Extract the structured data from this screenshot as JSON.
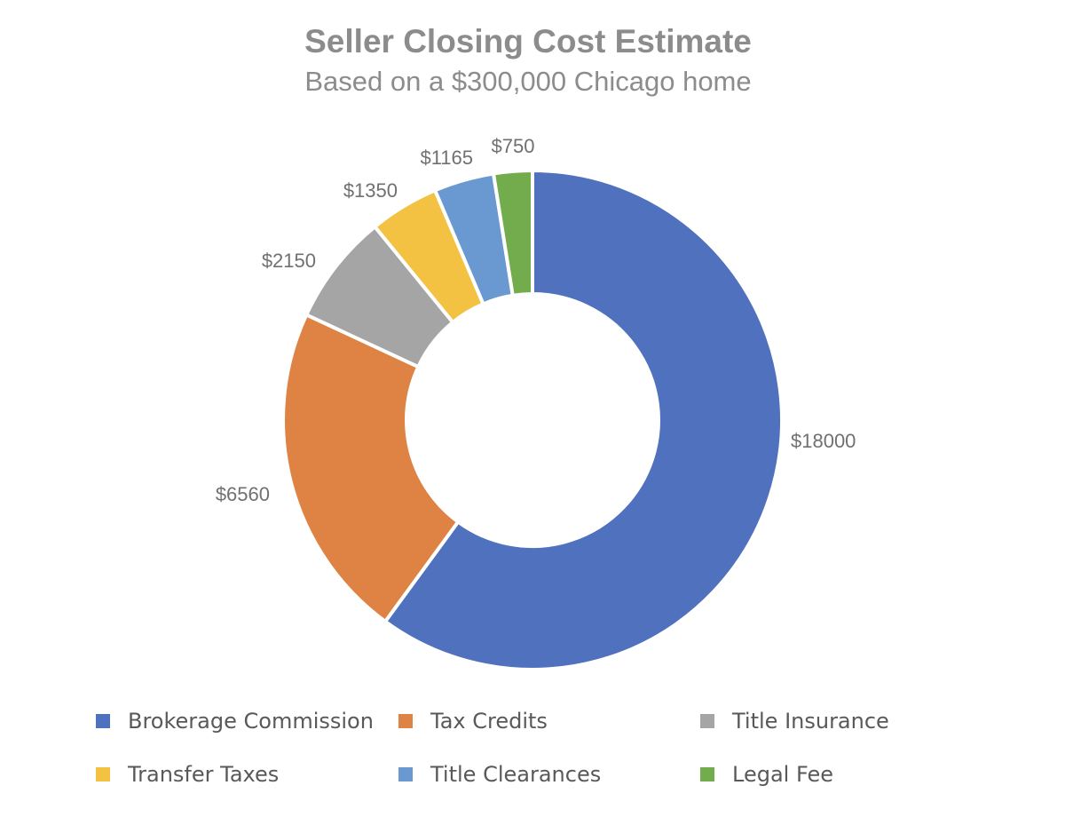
{
  "chart_data": {
    "type": "donut",
    "title": "Seller Closing Cost Estimate",
    "subtitle": "Based on a $300,000 Chicago home",
    "categories": [
      "Brokerage Commission",
      "Tax Credits",
      "Title Insurance",
      "Transfer Taxes",
      "Title Clearances",
      "Legal Fee"
    ],
    "values": [
      18000,
      6560,
      2150,
      1350,
      1165,
      750
    ],
    "data_labels": [
      "$18000",
      "$6560",
      "$2150",
      "$1350",
      "$1165",
      "$750"
    ],
    "colors": [
      "#4f71be",
      "#de8344",
      "#a5a5a5",
      "#f4c242",
      "#6a98d0",
      "#72ac4d"
    ],
    "legend_position": "bottom",
    "start_angle_deg": 0,
    "direction": "clockwise"
  }
}
